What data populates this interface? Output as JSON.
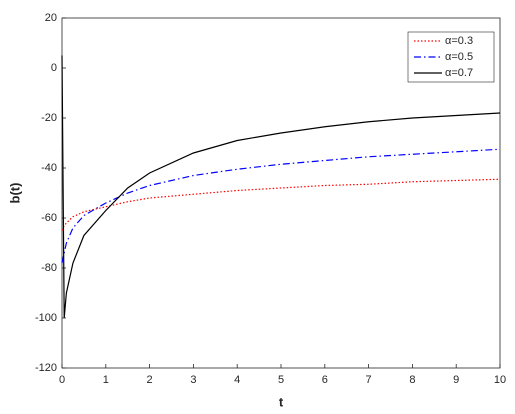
{
  "chart_data": {
    "type": "line",
    "xlabel": "t",
    "ylabel": "b(t)",
    "x": [
      0,
      0.05,
      0.1,
      0.25,
      0.5,
      1,
      1.5,
      2,
      3,
      4,
      5,
      6,
      7,
      8,
      9,
      10
    ],
    "series": [
      {
        "name": "α=0.3",
        "color": "#ff0000",
        "style": "dotted",
        "values": [
          -65,
          -63,
          -62,
          -59.5,
          -57.5,
          -55.5,
          -53.5,
          -52,
          -50.5,
          -49,
          -48,
          -47,
          -46.5,
          -45.5,
          -45,
          -44.5
        ]
      },
      {
        "name": "α=0.5",
        "color": "#0000ff",
        "style": "dashdot",
        "values": [
          -78,
          -74,
          -70,
          -64,
          -59,
          -54,
          -50,
          -47,
          -43,
          -40.5,
          -38.5,
          -37,
          -35.5,
          -34.5,
          -33.5,
          -32.5
        ]
      },
      {
        "name": "α=0.7",
        "color": "#000000",
        "style": "solid",
        "values": [
          5,
          -100,
          -90,
          -78,
          -67,
          -57,
          -48,
          -42,
          -34,
          -29,
          -26,
          -23.5,
          -21.5,
          -20,
          -19,
          -18
        ]
      }
    ],
    "xlim": [
      0,
      10
    ],
    "xticks": [
      0,
      1,
      2,
      3,
      4,
      5,
      6,
      7,
      8,
      9,
      10
    ],
    "ylim": [
      -120,
      20
    ],
    "yticks": [
      -120,
      -100,
      -80,
      -60,
      -40,
      -20,
      0,
      20
    ],
    "legend": "top-right",
    "grid": false
  }
}
